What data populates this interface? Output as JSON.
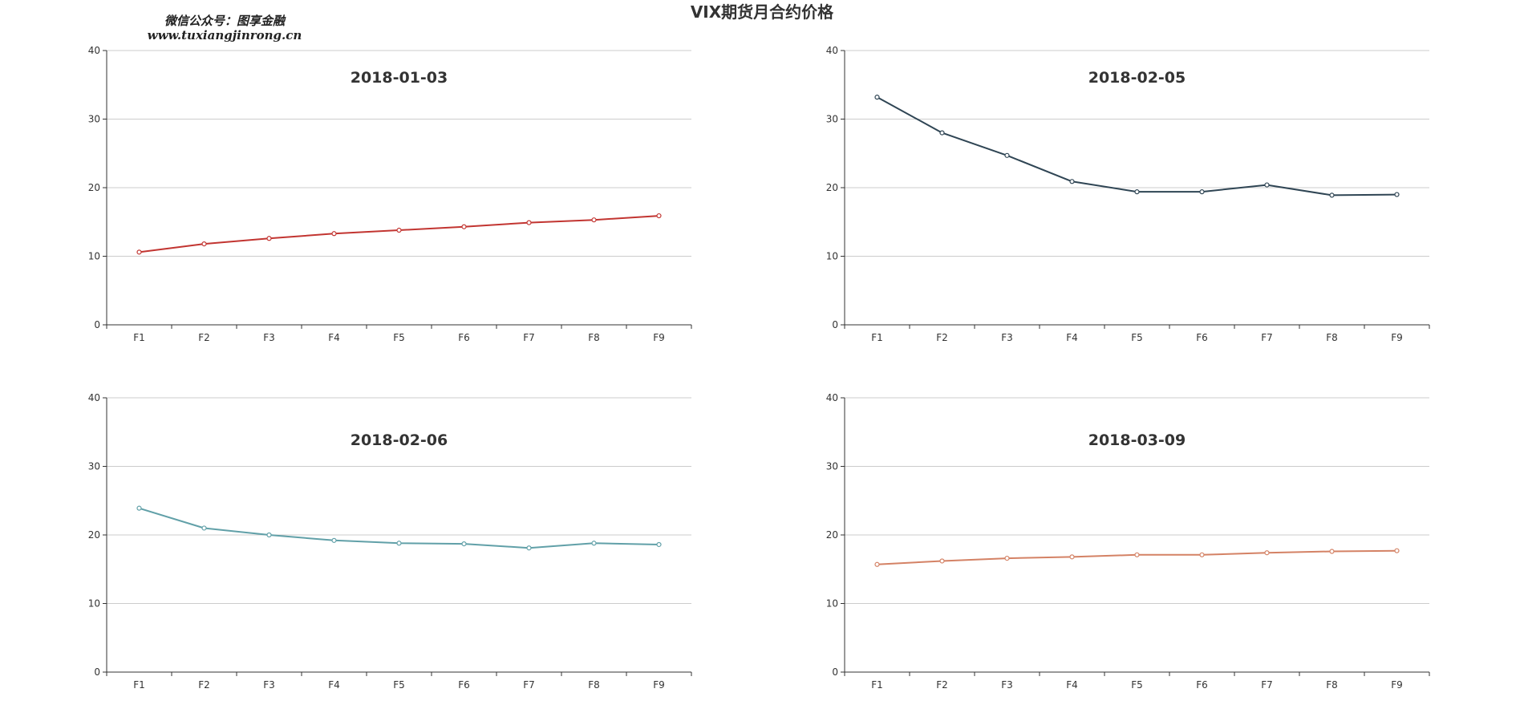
{
  "page": {
    "title": "VIX期货月合约价格",
    "watermark": {
      "line1": "微信公众号：图享金融",
      "line2": "www.tuxiangjinrong.cn"
    }
  },
  "chart_data": [
    {
      "type": "line",
      "title": "2018-01-03",
      "categories": [
        "F1",
        "F2",
        "F3",
        "F4",
        "F5",
        "F6",
        "F7",
        "F8",
        "F9"
      ],
      "series": [
        {
          "values": [
            10.6,
            11.8,
            12.6,
            13.3,
            13.8,
            14.3,
            14.9,
            15.3,
            15.9
          ]
        }
      ],
      "ylim": [
        0,
        40
      ],
      "yticks": [
        "0",
        "10",
        "20",
        "30",
        "40"
      ],
      "color": "#c23531",
      "grid": true
    },
    {
      "type": "line",
      "title": "2018-02-05",
      "categories": [
        "F1",
        "F2",
        "F3",
        "F4",
        "F5",
        "F6",
        "F7",
        "F8",
        "F9"
      ],
      "series": [
        {
          "values": [
            33.2,
            28.0,
            24.7,
            20.9,
            19.4,
            19.4,
            20.4,
            18.9,
            19.0
          ]
        }
      ],
      "ylim": [
        0,
        40
      ],
      "yticks": [
        "0",
        "10",
        "20",
        "30",
        "40"
      ],
      "color": "#2f4554",
      "grid": true
    },
    {
      "type": "line",
      "title": "2018-02-06",
      "categories": [
        "F1",
        "F2",
        "F3",
        "F4",
        "F5",
        "F6",
        "F7",
        "F8",
        "F9"
      ],
      "series": [
        {
          "values": [
            23.9,
            21.0,
            20.0,
            19.2,
            18.8,
            18.7,
            18.1,
            18.8,
            18.6
          ]
        }
      ],
      "ylim": [
        0,
        40
      ],
      "yticks": [
        "0",
        "10",
        "20",
        "30",
        "40"
      ],
      "color": "#61a0a8",
      "grid": true
    },
    {
      "type": "line",
      "title": "2018-03-09",
      "categories": [
        "F1",
        "F2",
        "F3",
        "F4",
        "F5",
        "F6",
        "F7",
        "F8",
        "F9"
      ],
      "series": [
        {
          "values": [
            15.7,
            16.2,
            16.6,
            16.8,
            17.1,
            17.1,
            17.4,
            17.6,
            17.7
          ]
        }
      ],
      "ylim": [
        0,
        40
      ],
      "yticks": [
        "0",
        "10",
        "20",
        "30",
        "40"
      ],
      "color": "#d48265",
      "grid": true
    }
  ]
}
